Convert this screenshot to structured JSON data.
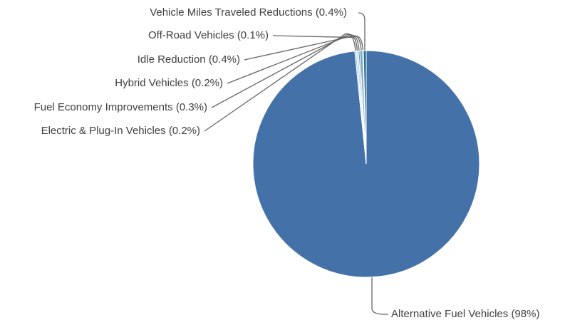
{
  "chart_data": {
    "type": "pie",
    "categories": [
      "Alternative Fuel Vehicles",
      "Electric & Plug-In Vehicles",
      "Fuel Economy Improvements",
      "Hybrid Vehicles",
      "Idle Reduction",
      "Off-Road Vehicles",
      "Vehicle Miles Traveled Reductions"
    ],
    "values": [
      98,
      0.2,
      0.3,
      0.2,
      0.4,
      0.1,
      0.4
    ],
    "value_labels": [
      "(98%)",
      "(0.2%)",
      "(0.3%)",
      "(0.2%)",
      "(0.4%)",
      "(0.1%)",
      "(0.4%)"
    ],
    "colors": [
      "#4472a8",
      "#8eb4e3",
      "#c6d9f1",
      "#2e9e9e",
      "#7f9fc9",
      "#5b9bd5",
      "#1f6b8a"
    ]
  }
}
